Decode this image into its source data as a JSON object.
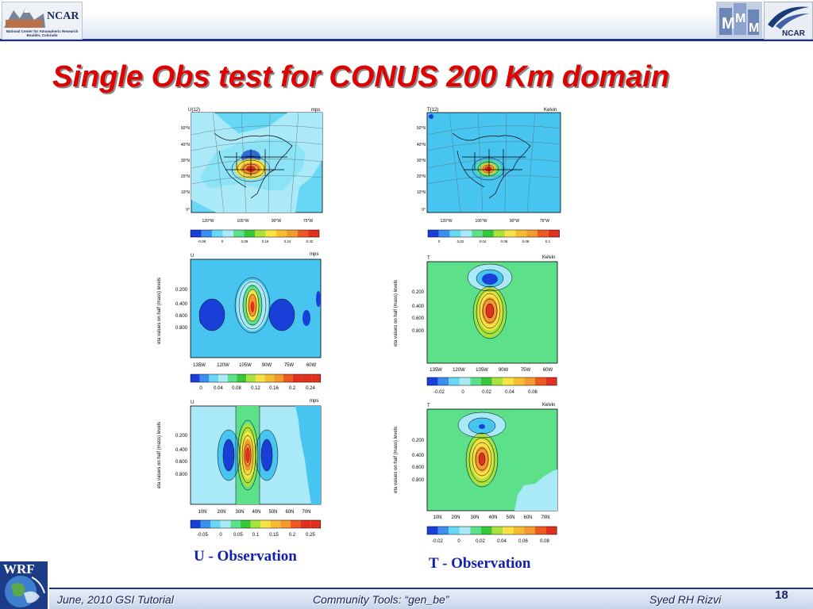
{
  "header": {
    "ncar_logo_text": "NCAR",
    "ncar_logo_subtext": "National Center for Atmospheric Research Boulder, Colorado",
    "right_logo_text": "NCAR"
  },
  "title": "Single Obs test for CONUS 200 Km domain",
  "captions": {
    "u": "U  - Observation",
    "t": "T  - Observation"
  },
  "panels": [
    {
      "var": "U(12)",
      "units": "mps",
      "y_ticks": [
        "50°N",
        "40°N",
        "30°N",
        "20°N",
        "10°N",
        "0°"
      ],
      "x_ticks": [
        "120°W",
        "105°W",
        "90°W",
        "75°W"
      ],
      "colorbar": [
        "-0.08",
        "0",
        "0.08",
        "0.16",
        "0.24",
        "0.32"
      ]
    },
    {
      "var": "T(12)",
      "units": "Kelvin",
      "y_ticks": [
        "50°N",
        "40°N",
        "30°N",
        "20°N",
        "10°N",
        "0°"
      ],
      "x_ticks": [
        "120°W",
        "105°W",
        "90°W",
        "75°W"
      ],
      "colorbar": [
        "0",
        "0.02",
        "0.04",
        "0.06",
        "0.08",
        "0.1"
      ]
    },
    {
      "var": "U",
      "units": "mps",
      "ylabel": "eta values on half (mass) levels",
      "y_ticks": [
        "0.200",
        "0.400",
        "0.600",
        "0.800"
      ],
      "x_ticks": [
        "135W",
        "120W",
        "105W",
        "90W",
        "75W",
        "60W"
      ],
      "colorbar": [
        "0",
        "0.04",
        "0.08",
        "0.12",
        "0.16",
        "0.2",
        "0.24"
      ]
    },
    {
      "var": "T",
      "units": "Kelvin",
      "ylabel": "eta values on half (mass) levels",
      "y_ticks": [
        "0.200",
        "0.400",
        "0.600",
        "0.800"
      ],
      "x_ticks": [
        "135W",
        "120W",
        "105W",
        "90W",
        "75W",
        "60W"
      ],
      "colorbar": [
        "-0.02",
        "0",
        "0.02",
        "0.04",
        "0.06"
      ]
    },
    {
      "var": "U",
      "units": "mps",
      "ylabel": "eta values on half (mass) levels",
      "y_ticks": [
        "0.200",
        "0.400",
        "0.600",
        "0.800"
      ],
      "x_ticks": [
        "10N",
        "20N",
        "30N",
        "40N",
        "50N",
        "60N",
        "70N"
      ],
      "colorbar": [
        "-0.05",
        "0",
        "0.05",
        "0.1",
        "0.15",
        "0.2",
        "0.25"
      ]
    },
    {
      "var": "T",
      "units": "Kelvin",
      "ylabel": "eta values on half (mass) levels",
      "y_ticks": [
        "0.200",
        "0.400",
        "0.600",
        "0.800"
      ],
      "x_ticks": [
        "10N",
        "20N",
        "30N",
        "40N",
        "50N",
        "60N",
        "70N"
      ],
      "colorbar": [
        "-0.02",
        "0",
        "0.02",
        "0.04",
        "0.06",
        "0.08"
      ]
    }
  ],
  "footer": {
    "left": "June, 2010 GSI Tutorial",
    "center": "Community Tools: “gen_be”",
    "right": "Syed RH Rizvi",
    "page": "18"
  }
}
